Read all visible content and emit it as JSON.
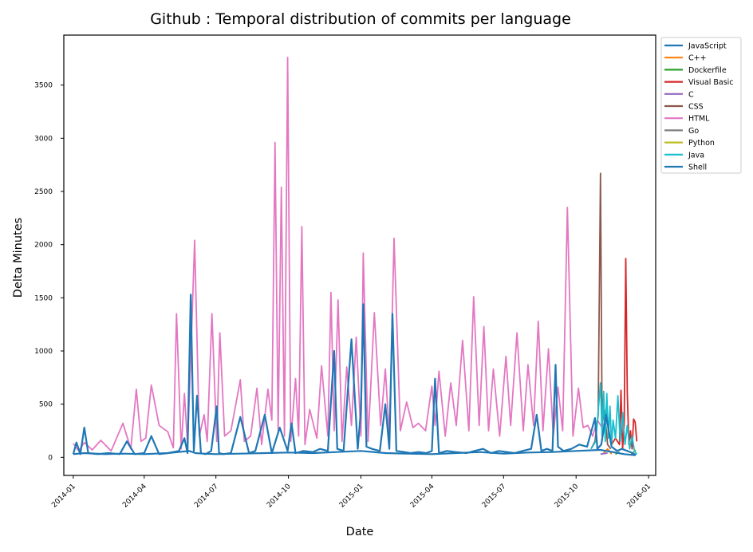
{
  "chart_data": {
    "type": "line",
    "title": "Github : Temporal distribution of commits per language",
    "xlabel": "Date",
    "ylabel": "Delta Minutes",
    "x_range": [
      "2013-12-20",
      "2016-01-10"
    ],
    "ylim": [
      -170,
      3970
    ],
    "yticks": [
      0,
      500,
      1000,
      1500,
      2000,
      2500,
      3000,
      3500
    ],
    "xticks": [
      "2014-01",
      "2014-04",
      "2014-07",
      "2014-10",
      "2015-01",
      "2015-04",
      "2015-07",
      "2015-10",
      "2016-01"
    ],
    "grid": false,
    "legend_position": "top-right (outside plot area)",
    "series": [
      {
        "name": "JavaScript",
        "color": "#1f77b4",
        "x": [
          "2014-01-01",
          "2014-01-15",
          "2014-02-10",
          "2014-03-05",
          "2014-04-01",
          "2014-05-01",
          "2014-05-28",
          "2014-06-05",
          "2014-06-15",
          "2014-07-01",
          "2014-08-01",
          "2014-09-01",
          "2014-10-01",
          "2014-11-01",
          "2014-12-01",
          "2015-01-01",
          "2015-02-01",
          "2015-03-01",
          "2015-04-01",
          "2015-05-01",
          "2015-06-01",
          "2015-07-01",
          "2015-08-01",
          "2015-09-01",
          "2015-10-01",
          "2015-11-01",
          "2015-12-01",
          "2015-12-15"
        ],
        "values": [
          30,
          40,
          30,
          35,
          30,
          40,
          60,
          40,
          35,
          30,
          35,
          40,
          45,
          40,
          50,
          60,
          40,
          35,
          30,
          40,
          50,
          35,
          45,
          50,
          60,
          70,
          30,
          20
        ]
      },
      {
        "name": "C++",
        "color": "#ff7f0e",
        "x": [
          "2015-11-05",
          "2015-11-10",
          "2015-11-15"
        ],
        "values": [
          40,
          80,
          30
        ]
      },
      {
        "name": "Dockerfile",
        "color": "#2ca02c",
        "x": [
          "2015-11-20",
          "2015-11-25"
        ],
        "values": [
          30,
          50
        ]
      },
      {
        "name": "Visual Basic",
        "color": "#d62728",
        "x": [
          "2015-11-15",
          "2015-11-20",
          "2015-11-25",
          "2015-11-27",
          "2015-11-29",
          "2015-12-01",
          "2015-12-03",
          "2015-12-05",
          "2015-12-07",
          "2015-12-09",
          "2015-12-11",
          "2015-12-13",
          "2015-12-15",
          "2015-12-17"
        ],
        "values": [
          120,
          180,
          120,
          630,
          80,
          300,
          1870,
          600,
          120,
          250,
          80,
          360,
          330,
          150
        ]
      },
      {
        "name": "C",
        "color": "#9467bd",
        "x": [
          "2015-11-01",
          "2015-11-10"
        ],
        "values": [
          30,
          40
        ]
      },
      {
        "name": "CSS",
        "color": "#8c564b",
        "x": [
          "2015-10-20",
          "2015-10-25",
          "2015-10-29",
          "2015-11-01",
          "2015-11-03",
          "2015-11-06",
          "2015-11-10",
          "2015-11-14"
        ],
        "values": [
          80,
          150,
          400,
          2670,
          300,
          450,
          120,
          80
        ]
      },
      {
        "name": "HTML",
        "color": "#e377c2",
        "x": [
          "2014-01-01",
          "2014-01-08",
          "2014-01-15",
          "2014-01-25",
          "2014-02-05",
          "2014-02-18",
          "2014-03-05",
          "2014-03-15",
          "2014-03-22",
          "2014-03-28",
          "2014-04-03",
          "2014-04-10",
          "2014-04-20",
          "2014-05-01",
          "2014-05-08",
          "2014-05-12",
          "2014-05-18",
          "2014-05-22",
          "2014-05-26",
          "2014-05-30",
          "2014-06-04",
          "2014-06-10",
          "2014-06-16",
          "2014-06-20",
          "2014-06-26",
          "2014-07-02",
          "2014-07-06",
          "2014-07-12",
          "2014-07-20",
          "2014-08-01",
          "2014-08-06",
          "2014-08-14",
          "2014-08-22",
          "2014-08-28",
          "2014-09-05",
          "2014-09-10",
          "2014-09-14",
          "2014-09-18",
          "2014-09-22",
          "2014-09-26",
          "2014-09-30",
          "2014-10-04",
          "2014-10-10",
          "2014-10-14",
          "2014-10-18",
          "2014-10-22",
          "2014-10-28",
          "2014-11-06",
          "2014-11-12",
          "2014-11-20",
          "2014-11-24",
          "2014-11-28",
          "2014-12-03",
          "2014-12-08",
          "2014-12-14",
          "2014-12-20",
          "2014-12-26",
          "2015-01-01",
          "2015-01-04",
          "2015-01-10",
          "2015-01-18",
          "2015-01-26",
          "2015-02-01",
          "2015-02-06",
          "2015-02-12",
          "2015-02-20",
          "2015-02-28",
          "2015-03-08",
          "2015-03-15",
          "2015-03-24",
          "2015-04-01",
          "2015-04-05",
          "2015-04-10",
          "2015-04-18",
          "2015-04-25",
          "2015-05-02",
          "2015-05-10",
          "2015-05-18",
          "2015-05-24",
          "2015-05-31",
          "2015-06-06",
          "2015-06-12",
          "2015-06-18",
          "2015-06-26",
          "2015-07-04",
          "2015-07-10",
          "2015-07-18",
          "2015-07-26",
          "2015-08-01",
          "2015-08-08",
          "2015-08-14",
          "2015-08-20",
          "2015-08-27",
          "2015-09-02",
          "2015-09-08",
          "2015-09-14",
          "2015-09-20",
          "2015-09-27",
          "2015-10-04",
          "2015-10-10",
          "2015-10-16",
          "2015-10-22",
          "2015-10-28",
          "2015-11-03",
          "2015-11-08"
        ],
        "values": [
          130,
          60,
          140,
          70,
          160,
          60,
          320,
          80,
          640,
          150,
          180,
          680,
          300,
          240,
          90,
          1350,
          80,
          600,
          120,
          920,
          2040,
          200,
          400,
          150,
          1350,
          150,
          1170,
          200,
          250,
          730,
          150,
          200,
          650,
          120,
          640,
          350,
          2960,
          250,
          2540,
          200,
          3760,
          150,
          740,
          200,
          2170,
          120,
          450,
          180,
          860,
          200,
          1550,
          250,
          1480,
          150,
          850,
          300,
          1130,
          200,
          1920,
          150,
          1360,
          300,
          830,
          200,
          2060,
          250,
          520,
          280,
          320,
          250,
          670,
          300,
          810,
          200,
          700,
          300,
          1100,
          250,
          1510,
          300,
          1230,
          250,
          830,
          200,
          950,
          300,
          1170,
          250,
          870,
          300,
          1280,
          250,
          1020,
          200,
          660,
          250,
          2350,
          200,
          650,
          280,
          300,
          200,
          350,
          280,
          350
        ]
      },
      {
        "name": "Go",
        "color": "#7f7f7f",
        "x": [
          "2015-12-10",
          "2015-12-15"
        ],
        "values": [
          30,
          60
        ]
      },
      {
        "name": "Python",
        "color": "#bcbd22",
        "x": [
          "2015-12-12",
          "2015-12-16"
        ],
        "values": [
          40,
          70
        ]
      },
      {
        "name": "Java",
        "color": "#17becf",
        "x": [
          "2015-10-20",
          "2015-10-26",
          "2015-11-01",
          "2015-11-03",
          "2015-11-05",
          "2015-11-07",
          "2015-11-09",
          "2015-11-11",
          "2015-11-13",
          "2015-11-15",
          "2015-11-17",
          "2015-11-20",
          "2015-11-23",
          "2015-11-26",
          "2015-11-29",
          "2015-12-02",
          "2015-12-05",
          "2015-12-08",
          "2015-12-11",
          "2015-12-14",
          "2015-12-17"
        ],
        "values": [
          80,
          150,
          700,
          200,
          620,
          150,
          600,
          180,
          480,
          120,
          350,
          180,
          580,
          150,
          420,
          120,
          300,
          80,
          200,
          60,
          30
        ]
      },
      {
        "name": "Shell",
        "color": "#1f77b4",
        "x": [
          "2014-01-01",
          "2014-01-05",
          "2014-01-10",
          "2014-01-15",
          "2014-01-20",
          "2014-02-01",
          "2014-02-15",
          "2014-03-01",
          "2014-03-10",
          "2014-03-20",
          "2014-04-01",
          "2014-04-10",
          "2014-04-20",
          "2014-05-01",
          "2014-05-15",
          "2014-05-22",
          "2014-05-26",
          "2014-05-30",
          "2014-06-03",
          "2014-06-07",
          "2014-06-12",
          "2014-06-18",
          "2014-06-25",
          "2014-07-02",
          "2014-07-05",
          "2014-07-10",
          "2014-07-20",
          "2014-08-01",
          "2014-08-12",
          "2014-08-20",
          "2014-09-01",
          "2014-09-10",
          "2014-09-20",
          "2014-09-30",
          "2014-10-05",
          "2014-10-10",
          "2014-10-20",
          "2014-11-01",
          "2014-11-10",
          "2014-11-20",
          "2014-11-28",
          "2014-12-02",
          "2014-12-10",
          "2014-12-20",
          "2014-12-28",
          "2015-01-01",
          "2015-01-04",
          "2015-01-08",
          "2015-01-15",
          "2015-01-25",
          "2015-02-01",
          "2015-02-06",
          "2015-02-10",
          "2015-02-15",
          "2015-02-25",
          "2015-03-05",
          "2015-03-15",
          "2015-03-25",
          "2015-04-01",
          "2015-04-05",
          "2015-04-10",
          "2015-04-20",
          "2015-05-01",
          "2015-05-15",
          "2015-05-25",
          "2015-06-05",
          "2015-06-15",
          "2015-06-25",
          "2015-07-05",
          "2015-07-15",
          "2015-07-25",
          "2015-08-05",
          "2015-08-12",
          "2015-08-18",
          "2015-08-25",
          "2015-09-01",
          "2015-09-05",
          "2015-09-08",
          "2015-09-15",
          "2015-09-25",
          "2015-10-05",
          "2015-10-15",
          "2015-10-25",
          "2015-10-28",
          "2015-11-02",
          "2015-11-08",
          "2015-11-15",
          "2015-11-22",
          "2015-11-28",
          "2015-12-05",
          "2015-12-12",
          "2015-12-16"
        ],
        "values": [
          30,
          140,
          30,
          280,
          40,
          30,
          40,
          30,
          150,
          30,
          40,
          200,
          30,
          40,
          60,
          180,
          40,
          1530,
          60,
          580,
          40,
          30,
          60,
          480,
          40,
          30,
          40,
          380,
          40,
          60,
          400,
          40,
          280,
          60,
          320,
          40,
          60,
          50,
          80,
          60,
          1000,
          80,
          60,
          1110,
          80,
          450,
          1440,
          100,
          80,
          60,
          500,
          80,
          1350,
          60,
          50,
          40,
          50,
          40,
          60,
          740,
          40,
          60,
          50,
          40,
          60,
          80,
          40,
          60,
          50,
          40,
          60,
          80,
          400,
          60,
          80,
          60,
          870,
          100,
          60,
          80,
          120,
          100,
          370,
          80,
          120,
          400,
          100,
          60,
          80,
          60,
          40,
          20
        ]
      }
    ]
  }
}
